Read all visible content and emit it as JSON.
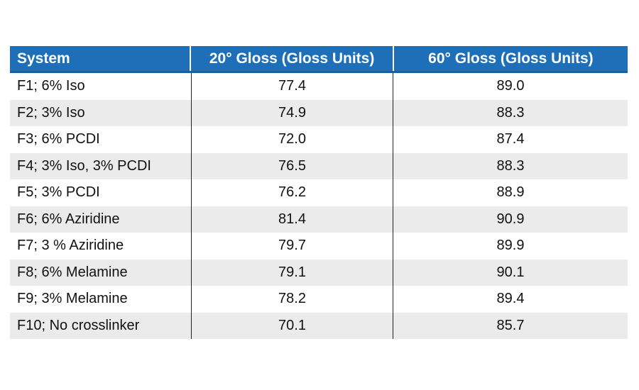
{
  "table": {
    "headers": [
      "System",
      "20° Gloss (Gloss Units)",
      "60° Gloss (Gloss Units)"
    ],
    "rows": [
      [
        "F1; 6% Iso",
        "77.4",
        "89.0"
      ],
      [
        "F2; 3% Iso",
        "74.9",
        "88.3"
      ],
      [
        "F3; 6% PCDI",
        "72.0",
        "87.4"
      ],
      [
        "F4; 3% Iso, 3% PCDI",
        "76.5",
        "88.3"
      ],
      [
        "F5; 3% PCDI",
        "76.2",
        "88.9"
      ],
      [
        "F6; 6% Aziridine",
        "81.4",
        "90.9"
      ],
      [
        "F7; 3 % Aziridine",
        "79.7",
        "89.9"
      ],
      [
        "F8; 6% Melamine",
        "79.1",
        "90.1"
      ],
      [
        "F9; 3% Melamine",
        "78.2",
        "89.4"
      ],
      [
        "F10; No crosslinker",
        "70.1",
        "85.7"
      ]
    ]
  },
  "colors": {
    "header_bg": "#1f6fb8",
    "header_text": "#ffffff",
    "alt_row_bg": "#ebebeb"
  }
}
